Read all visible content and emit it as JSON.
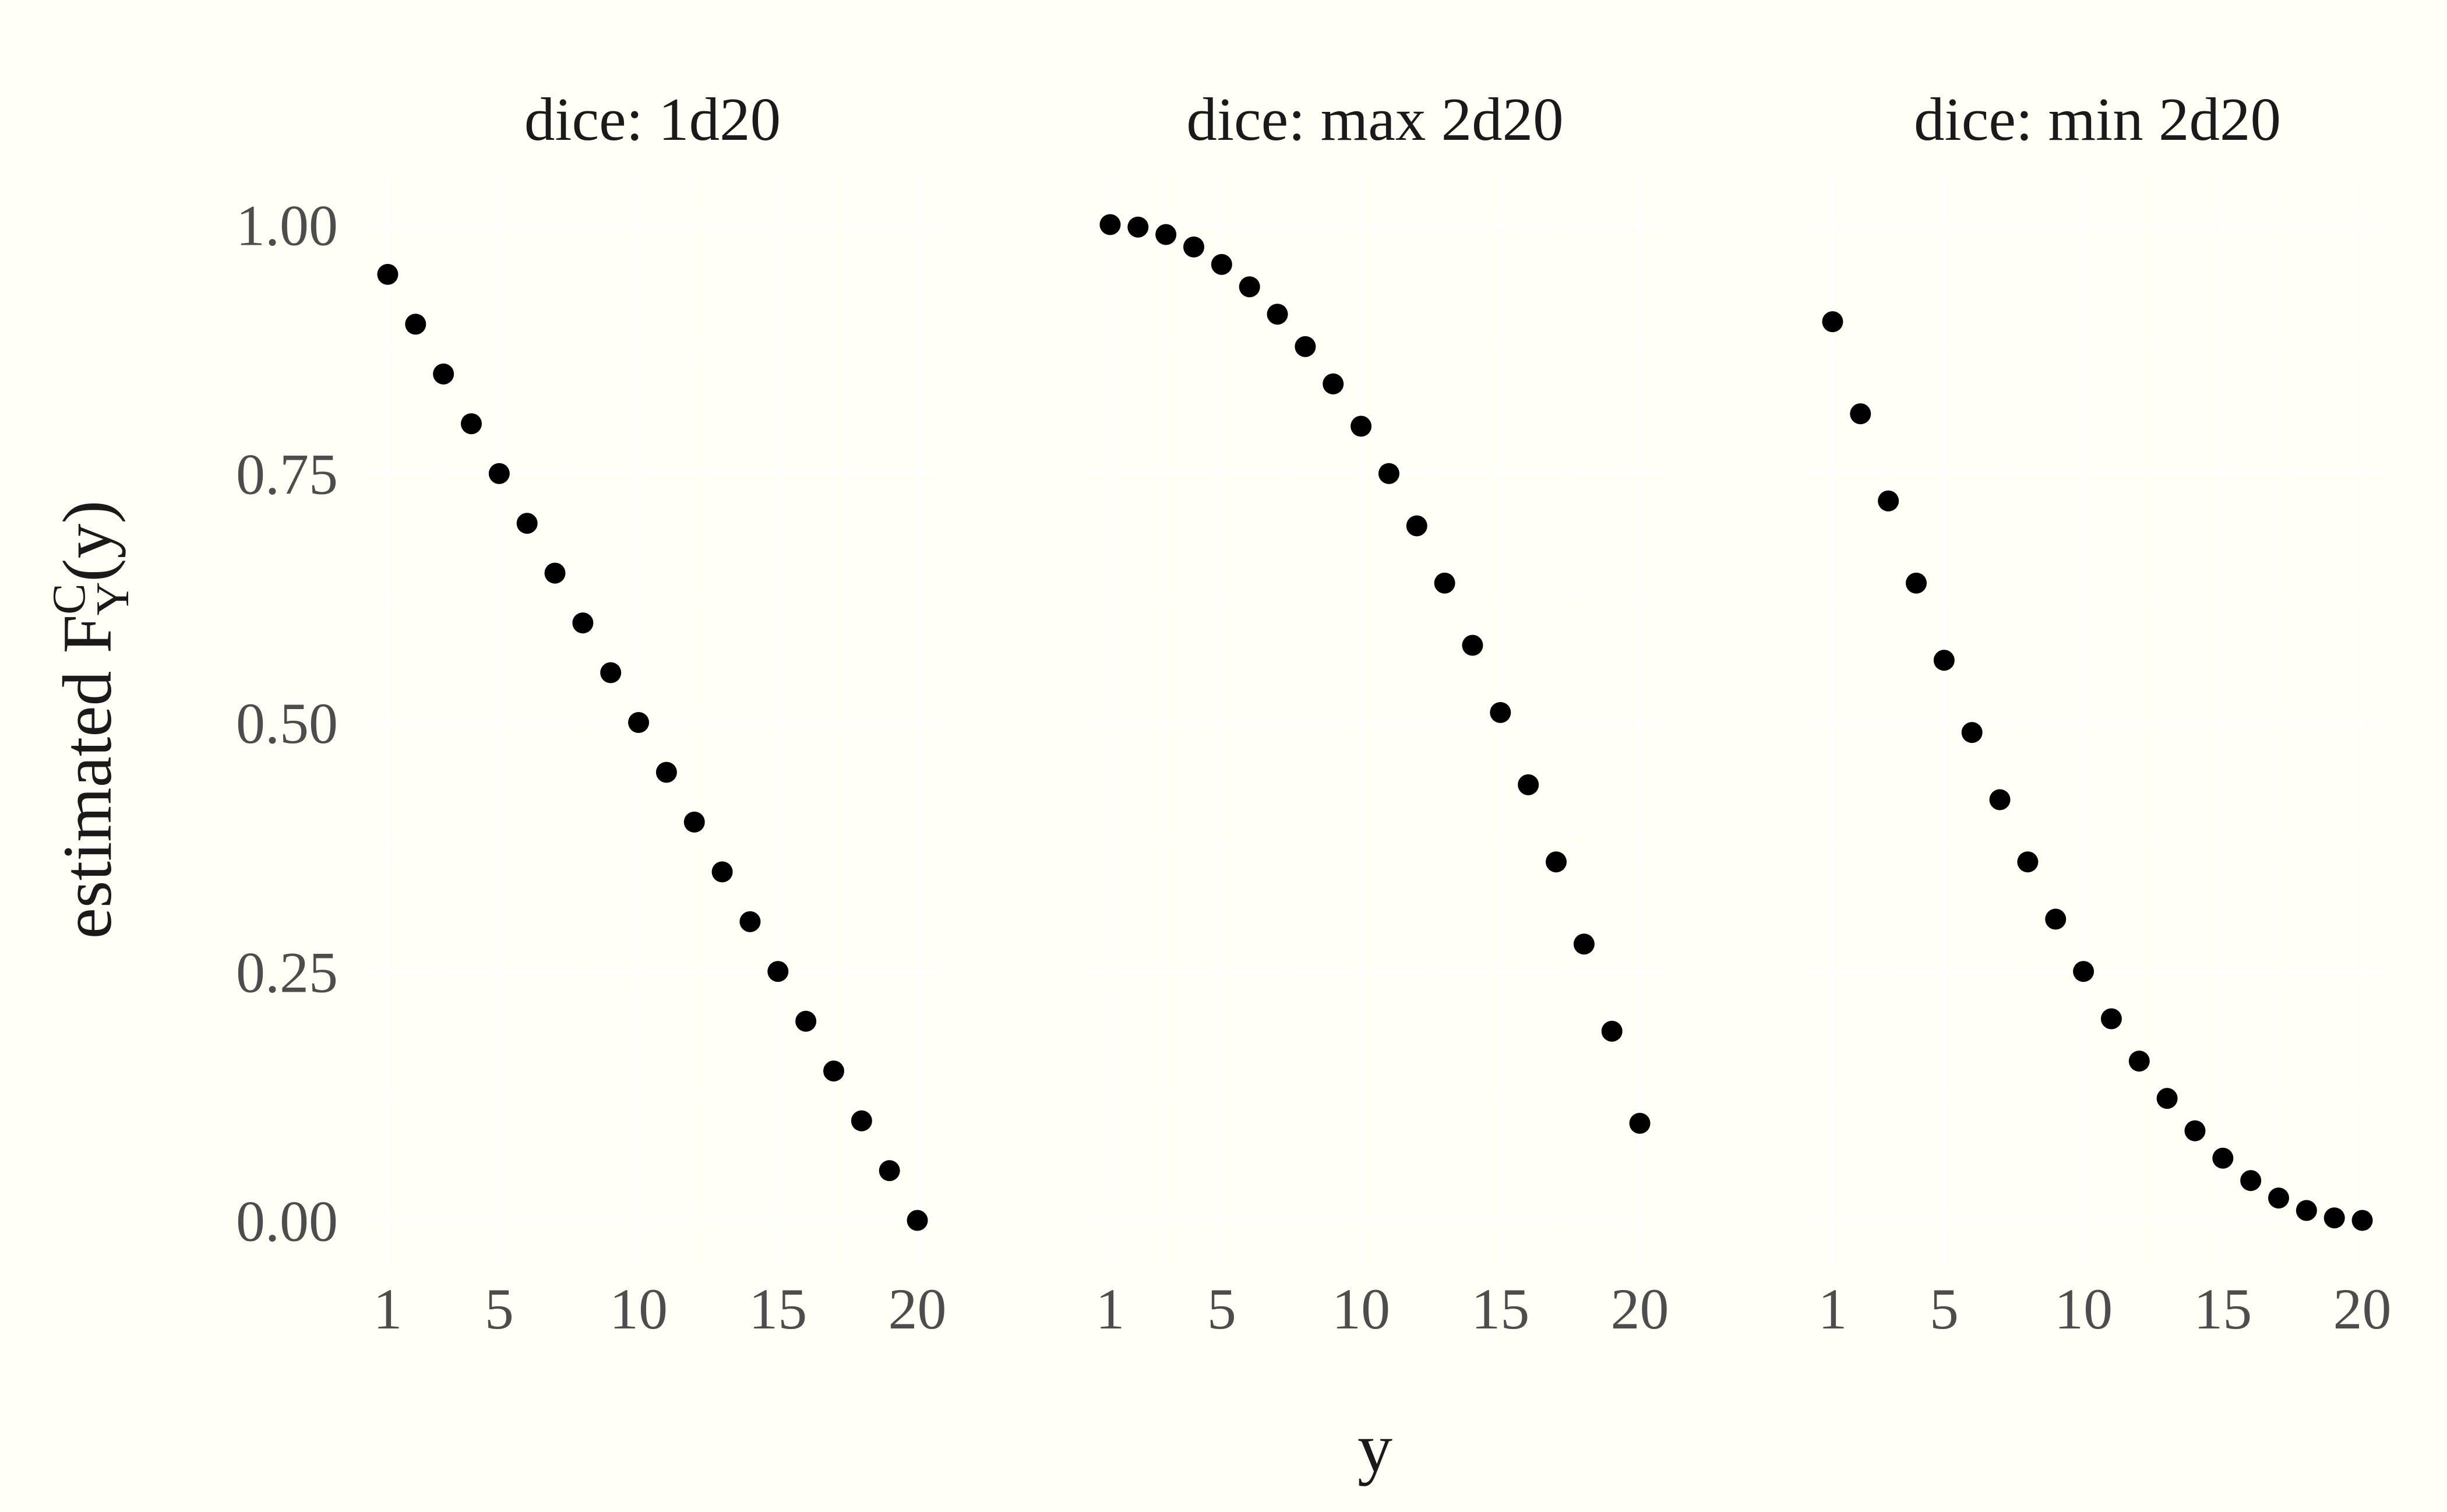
{
  "chart_data": [
    {
      "type": "scatter",
      "panel": "dice: 1d20",
      "x": [
        1,
        2,
        3,
        4,
        5,
        6,
        7,
        8,
        9,
        10,
        11,
        12,
        13,
        14,
        15,
        16,
        17,
        18,
        19,
        20
      ],
      "y": [
        0.95,
        0.9,
        0.85,
        0.8,
        0.75,
        0.7,
        0.65,
        0.6,
        0.55,
        0.5,
        0.45,
        0.4,
        0.35,
        0.3,
        0.25,
        0.2,
        0.15,
        0.1,
        0.05,
        0.0
      ]
    },
    {
      "type": "scatter",
      "panel": "dice: max 2d20",
      "x": [
        1,
        2,
        3,
        4,
        5,
        6,
        7,
        8,
        9,
        10,
        11,
        12,
        13,
        14,
        15,
        16,
        17,
        18,
        19,
        20
      ],
      "y": [
        1.0,
        0.9975,
        0.99,
        0.9775,
        0.96,
        0.9375,
        0.91,
        0.8775,
        0.84,
        0.7975,
        0.75,
        0.6975,
        0.64,
        0.5775,
        0.51,
        0.4375,
        0.36,
        0.2775,
        0.19,
        0.0975
      ]
    },
    {
      "type": "scatter",
      "panel": "dice: min 2d20",
      "x": [
        1,
        2,
        3,
        4,
        5,
        6,
        7,
        8,
        9,
        10,
        11,
        12,
        13,
        14,
        15,
        16,
        17,
        18,
        19,
        20
      ],
      "y": [
        0.9025,
        0.81,
        0.7225,
        0.64,
        0.5625,
        0.49,
        0.4225,
        0.36,
        0.3025,
        0.25,
        0.2025,
        0.16,
        0.1225,
        0.09,
        0.0625,
        0.04,
        0.0225,
        0.01,
        0.0025,
        0.0
      ]
    }
  ],
  "axes": {
    "xlabel": "y",
    "ylabel_prefix": "estimated F",
    "ylabel_sup": "C",
    "ylabel_sub": "Y",
    "ylabel_suffix": "(y)",
    "x_ticks": [
      "1",
      "5",
      "10",
      "15",
      "20"
    ],
    "x_tick_values": [
      1,
      5,
      10,
      15,
      20
    ],
    "y_ticks": [
      "0.00",
      "0.25",
      "0.50",
      "0.75",
      "1.00"
    ],
    "y_tick_values": [
      0,
      0.25,
      0.5,
      0.75,
      1
    ],
    "xlim": [
      0.05,
      20.95
    ],
    "ylim": [
      -0.05,
      1.05
    ],
    "grid": true,
    "point_color": "#000000",
    "background_color": "#fffff5",
    "grid_color": "#ffffff"
  }
}
